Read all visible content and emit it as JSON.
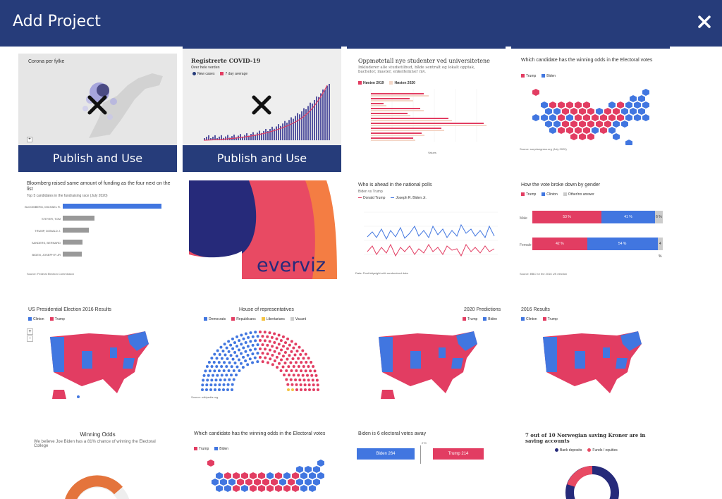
{
  "header": {
    "title": "Add Project"
  },
  "actions": {
    "publish_label": "Publish and Use"
  },
  "colors": {
    "header": "#263c7a",
    "red": "#e23d62",
    "blue": "#4176e0"
  },
  "cards": {
    "c1": {
      "title": "Corona per fylke"
    },
    "c2": {
      "title": "Registrerte COVID-19",
      "subtitle": "Over hele verden",
      "legend": [
        "New cases",
        "7 day average"
      ]
    },
    "c3": {
      "title": "Oppmøtetall nye studenter ved universitetene",
      "subtitle": "Inkluderer alle studietilbud, både sentralt og lokalt opptak, bachelor, master, enkeltemner mv.",
      "legend": [
        "Høsten 2019",
        "Høsten 2020"
      ],
      "xlabel": "Values"
    },
    "c4": {
      "title": "Which candidate has the winning odds in the Electoral votes",
      "legend": [
        "Trump",
        "Biden"
      ],
      "source": "Source: surprisegress.org (July 2020)"
    },
    "c5": {
      "title": "Bloomberg raised same amount of funding as the four next on the list",
      "subtitle": "Top 5 candidates in the fundraising race (July 2020)",
      "bars": [
        "BLOOMBERG, MICHAEL R.",
        "STEYER, TOM",
        "TRUMP, DONALD J.",
        "SANDERS, BERNARD",
        "BIDEN, JOSEPH R JR"
      ],
      "source": "Source: Federal Election Commission"
    },
    "c6": {
      "logo": "everviz"
    },
    "c7": {
      "title": "Who is ahead in the national polls",
      "subtitle": "Biden vs Trump",
      "legend": [
        "Donald Trump",
        "Joseph R. Biden Jr."
      ],
      "source": "Data: Fivethirtyeight with randomized data"
    },
    "c8": {
      "title": "How the vote broke down by gender",
      "legend": [
        "Trump",
        "Clinton",
        "Other/no answer"
      ],
      "rows": [
        {
          "label": "Male",
          "a": "53 %",
          "b": "41 %",
          "c": "6 %"
        },
        {
          "label": "Female",
          "a": "42 %",
          "b": "54 %",
          "c": "4 %"
        }
      ],
      "source": "Source: BBC for the 2016 US election"
    },
    "c9": {
      "title": "US Presidential Election 2016 Results",
      "legend": [
        "Clinton",
        "Trump"
      ]
    },
    "c10": {
      "title": "House of representatives",
      "legend": [
        "Democrats",
        "Republicans",
        "Libertarians",
        "Vacant"
      ],
      "source": "Source: wikipedia.org"
    },
    "c11": {
      "title": "2020 Predictions",
      "legend": [
        "Trump",
        "Biden"
      ]
    },
    "c12": {
      "title": "2016 Results",
      "legend": [
        "Clinton",
        "Trump"
      ]
    },
    "c13": {
      "title": "Winning Odds",
      "subtitle": "We believe Joe Biden has a 81% chance of winning the Electoral College"
    },
    "c14": {
      "title": "Which candidate has the winning odds in the Electoral votes",
      "legend": [
        "Trump",
        "Biden"
      ]
    },
    "c15": {
      "title": "Biden is 6 electoral votes away",
      "center": "270",
      "left": "Biden 264",
      "right": "Trump 214"
    },
    "c16": {
      "title": "7 out of 10 Norwegian saving Kroner are in saving accounts",
      "legend": [
        "Bank deposits",
        "Funds / equities"
      ]
    }
  }
}
